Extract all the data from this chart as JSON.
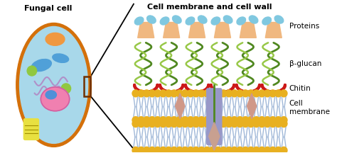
{
  "title_left": "Fungal cell",
  "title_right": "Cell membrane and cell wall",
  "labels": [
    "Proteins",
    "β-glucan",
    "Chitin",
    "Cell\nmembrane"
  ],
  "bg_color": "#ffffff",
  "cell_outline_color": "#d4700a",
  "cell_fill_color": "#a8d8ea",
  "nucleus_fill": "#f080b0",
  "nucleus_outline": "#d060a0",
  "vacuole_fill": "#50a0d8",
  "er_color": "#b090c8",
  "mito_color": "#e8e040",
  "small_orga_color": "#90c840",
  "protein_top_color": "#f0b880",
  "protein_blue_color": "#80c8e0",
  "glucan_dark": "#508820",
  "glucan_light": "#98c848",
  "chitin_color": "#cc1818",
  "membrane_ball_color": "#e8b020",
  "membrane_tail_color": "#a0b8d8",
  "protein_embed_color": "#9898c8",
  "diamond_pink": "#d09888",
  "diamond_pink2": "#c8a098",
  "vacuole_top_color": "#f09840",
  "font_size_title": 8,
  "font_size_label": 7.5
}
